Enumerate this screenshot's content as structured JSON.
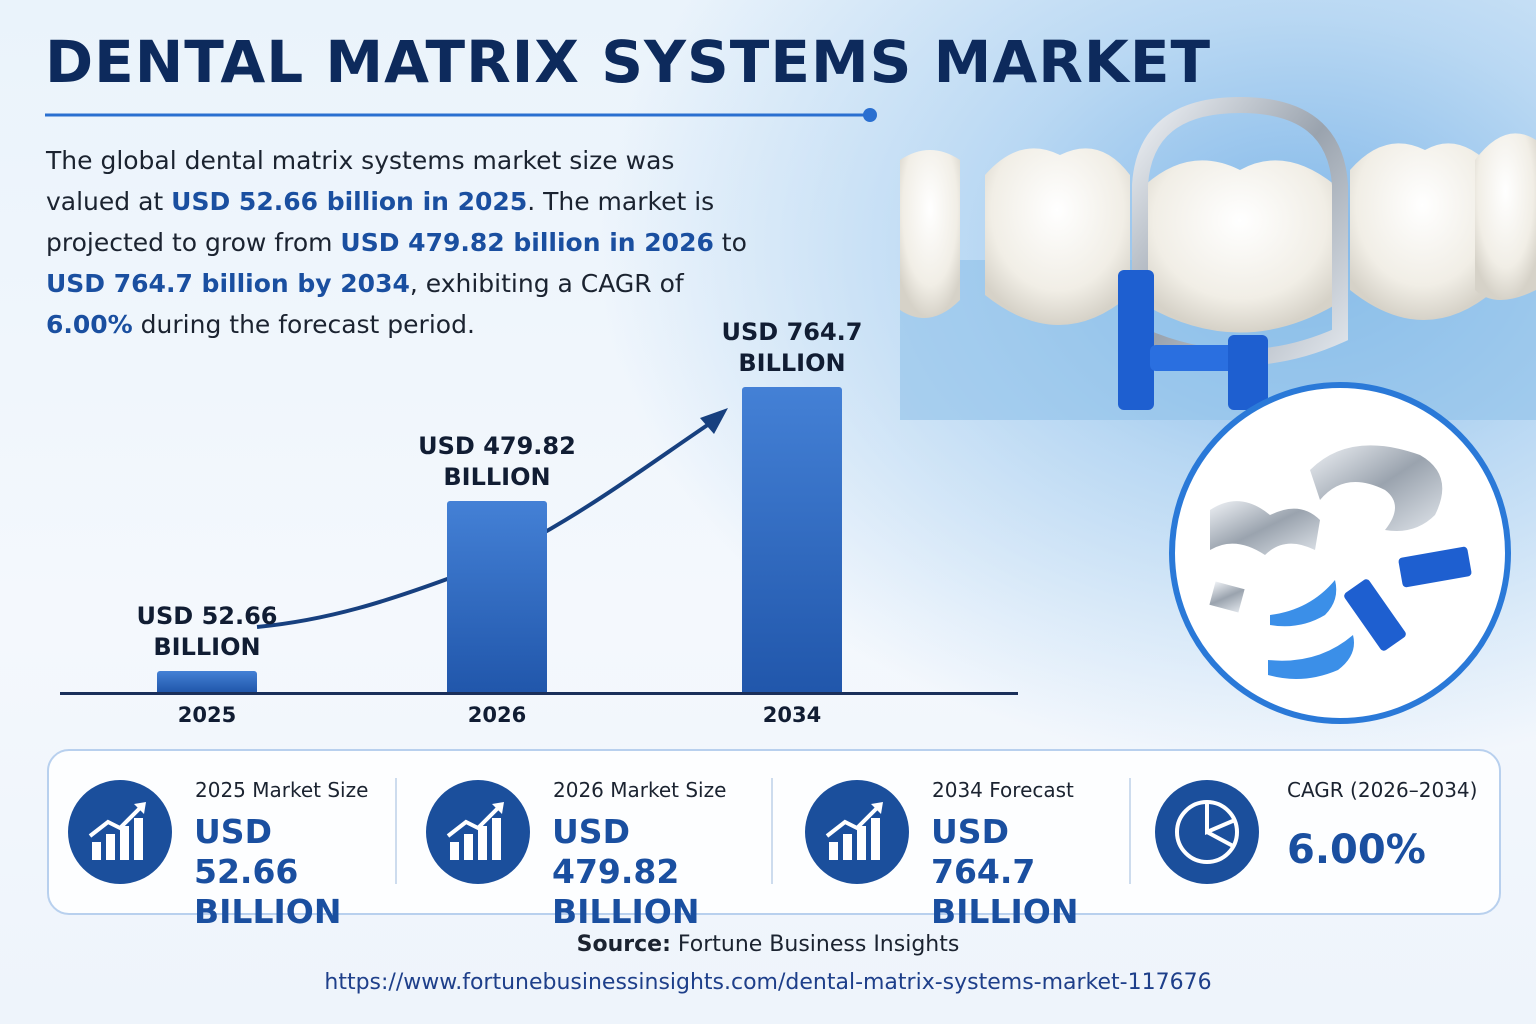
{
  "title": "DENTAL MATRIX SYSTEMS MARKET",
  "intro": [
    {
      "text": "The global dental matrix systems market size was valued at ",
      "highlight": false
    },
    {
      "text": "USD 52.66 billion in 2025",
      "highlight": true
    },
    {
      "text": ". The market is projected to grow from ",
      "highlight": false
    },
    {
      "text": "USD 479.82 billion in 2026",
      "highlight": true
    },
    {
      "text": " to ",
      "highlight": false
    },
    {
      "text": "USD 764.7 billion by 2034",
      "highlight": true
    },
    {
      "text": ", exhibiting a CAGR of ",
      "highlight": false
    },
    {
      "text": "6.00%",
      "highlight": true
    },
    {
      "text": " during the forecast period.",
      "highlight": false
    }
  ],
  "chart_data": {
    "type": "bar",
    "categories": [
      "2025",
      "2026",
      "2034"
    ],
    "values": [
      52.66,
      479.82,
      764.7
    ],
    "value_labels": [
      "USD 52.66 BILLION",
      "USD 479.82 BILLION",
      "USD 764.7 BILLION"
    ],
    "color": "#2a6fd0"
  },
  "stats": [
    {
      "label": "2025 Market Size",
      "value": "USD 52.66 BILLION"
    },
    {
      "label": "2026 Market Size",
      "value": "USD 479.82 BILLION"
    },
    {
      "label": "2034 Forecast",
      "value": "USD 764.7 BILLION"
    },
    {
      "label": "CAGR (2026–2034)",
      "value": "6.00%"
    }
  ],
  "source": {
    "label": "Source:",
    "name": "Fortune Business Insights",
    "url": "https://www.fortunebusinessinsights.com/dental-matrix-systems-market-117676"
  }
}
